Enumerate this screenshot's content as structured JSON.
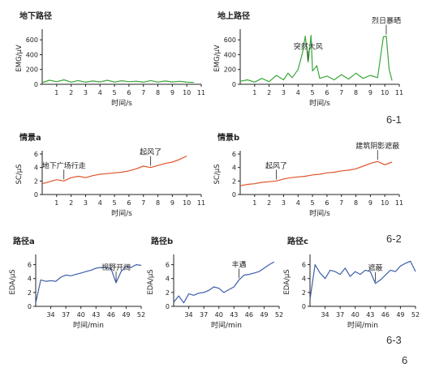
{
  "figure_labels": {
    "row1": "6-1",
    "row2": "6-2",
    "row3": "6-3",
    "figure": "6"
  },
  "colors": {
    "emg": "#3aa53a",
    "sc": "#e0542a",
    "eda": "#3c5fa8",
    "axis": "#222222"
  },
  "chart_data": [
    {
      "type": "line",
      "title": "地下路径",
      "xlabel": "时间/s",
      "ylabel": "EMG/μV",
      "xlim": [
        0,
        11
      ],
      "ylim": [
        0,
        700
      ],
      "x_ticks": [
        1,
        2,
        3,
        4,
        5,
        6,
        7,
        8,
        9,
        10,
        11
      ],
      "y_ticks": [
        0,
        200,
        400,
        600
      ],
      "x": [
        0,
        0.5,
        1,
        1.5,
        2,
        2.5,
        3,
        3.5,
        4,
        4.5,
        5,
        5.5,
        6,
        6.5,
        7,
        7.5,
        8,
        8.5,
        9,
        9.5,
        10,
        10.5
      ],
      "values": [
        22,
        55,
        35,
        60,
        30,
        50,
        28,
        45,
        32,
        55,
        30,
        48,
        35,
        42,
        28,
        50,
        30,
        45,
        32,
        40,
        28,
        25
      ],
      "annotations": []
    },
    {
      "type": "line",
      "title": "地上路径",
      "xlabel": "时间/s",
      "ylabel": "EMG/μV",
      "xlim": [
        0,
        11
      ],
      "ylim": [
        0,
        700
      ],
      "x_ticks": [
        1,
        2,
        3,
        4,
        5,
        6,
        7,
        8,
        9,
        10,
        11
      ],
      "y_ticks": [
        0,
        200,
        400,
        600
      ],
      "x": [
        0,
        0.5,
        1,
        1.5,
        2,
        2.5,
        3,
        3.3,
        3.6,
        4,
        4.3,
        4.5,
        4.7,
        4.9,
        5,
        5.3,
        5.5,
        6,
        6.5,
        7,
        7.5,
        8,
        8.5,
        9,
        9.5,
        9.9,
        10.1,
        10.3,
        10.5
      ],
      "values": [
        40,
        60,
        30,
        80,
        35,
        120,
        60,
        150,
        90,
        200,
        420,
        650,
        300,
        660,
        180,
        250,
        80,
        110,
        60,
        130,
        70,
        150,
        80,
        120,
        90,
        640,
        650,
        200,
        50
      ],
      "annotations": [
        {
          "text": "突然大风",
          "x": 4.7
        },
        {
          "text": "烈日暴晒",
          "x": 10.1
        }
      ]
    },
    {
      "type": "line",
      "title": "情景a",
      "xlabel": "时间/s",
      "ylabel": "SC/μS",
      "xlim": [
        0,
        11
      ],
      "ylim": [
        0,
        6
      ],
      "x_ticks": [
        1,
        2,
        3,
        4,
        5,
        6,
        7,
        8,
        9,
        10,
        11
      ],
      "y_ticks": [
        0,
        2,
        4,
        6
      ],
      "x": [
        0,
        0.5,
        1,
        1.5,
        2,
        2.5,
        3,
        3.5,
        4,
        4.5,
        5,
        5.5,
        6,
        6.5,
        7,
        7.5,
        8,
        8.5,
        9,
        9.5,
        10
      ],
      "values": [
        1.6,
        1.9,
        2.2,
        2.0,
        2.5,
        2.7,
        2.5,
        2.8,
        3.0,
        3.1,
        3.2,
        3.3,
        3.5,
        3.8,
        4.2,
        4.0,
        4.3,
        4.6,
        4.8,
        5.2,
        5.7
      ],
      "annotations": [
        {
          "text": "地下广场行走",
          "x": 1.3
        },
        {
          "text": "起风了",
          "x": 7.4
        }
      ]
    },
    {
      "type": "line",
      "title": "情景b",
      "xlabel": "时间/s",
      "ylabel": "SC/μS",
      "xlim": [
        0,
        11
      ],
      "ylim": [
        0,
        6
      ],
      "x_ticks": [
        1,
        2,
        3,
        4,
        5,
        6,
        7,
        8,
        9,
        10,
        11
      ],
      "y_ticks": [
        0,
        2,
        4,
        6
      ],
      "x": [
        0,
        0.5,
        1,
        1.5,
        2,
        2.5,
        3,
        3.5,
        4,
        4.5,
        5,
        5.5,
        6,
        6.5,
        7,
        7.5,
        8,
        8.5,
        9,
        9.5,
        10,
        10.5
      ],
      "values": [
        1.3,
        1.5,
        1.6,
        1.8,
        1.9,
        2.0,
        2.3,
        2.5,
        2.6,
        2.7,
        2.9,
        3.0,
        3.2,
        3.3,
        3.5,
        3.6,
        3.8,
        4.2,
        4.6,
        4.9,
        4.4,
        4.8
      ],
      "annotations": [
        {
          "text": "起风了",
          "x": 2.6
        },
        {
          "text": "建筑阴影遮蔽",
          "x": 9.5
        }
      ]
    },
    {
      "type": "line",
      "title": "路径a",
      "xlabel": "时间/min",
      "ylabel": "EDA/μS",
      "xlim": [
        31,
        52
      ],
      "ylim": [
        0,
        7
      ],
      "x_ticks": [
        34,
        37,
        40,
        43,
        46,
        49,
        52
      ],
      "y_ticks": [
        0,
        2,
        4,
        6
      ],
      "x": [
        31,
        32,
        33,
        34,
        35,
        36,
        37,
        38,
        39,
        40,
        41,
        42,
        43,
        44,
        45,
        46,
        47,
        48,
        49,
        50,
        51,
        52
      ],
      "values": [
        0.5,
        3.8,
        3.6,
        3.7,
        3.6,
        4.2,
        4.5,
        4.4,
        4.6,
        4.8,
        5.0,
        5.2,
        5.5,
        5.6,
        5.6,
        5.4,
        3.4,
        5.0,
        5.8,
        5.6,
        6.0,
        5.9
      ],
      "annotations": [
        {
          "text": "视野开阔",
          "x": 47
        }
      ]
    },
    {
      "type": "line",
      "title": "路径b",
      "xlabel": "时间/min",
      "ylabel": "EDA/μS",
      "xlim": [
        31,
        52
      ],
      "ylim": [
        0,
        7
      ],
      "x_ticks": [
        34,
        37,
        40,
        43,
        46,
        49,
        52
      ],
      "y_ticks": [
        0,
        2,
        4,
        6
      ],
      "x": [
        31,
        32,
        33,
        34,
        35,
        36,
        37,
        38,
        39,
        40,
        41,
        42,
        43,
        44,
        45,
        46,
        47,
        48,
        49,
        50,
        51
      ],
      "values": [
        0.6,
        1.5,
        0.5,
        1.8,
        1.6,
        1.9,
        2.0,
        2.3,
        2.8,
        2.6,
        2.0,
        2.4,
        2.8,
        3.8,
        4.5,
        4.6,
        4.8,
        5.0,
        5.5,
        6.0,
        6.4
      ],
      "annotations": [
        {
          "text": "丰遇",
          "x": 44
        }
      ]
    },
    {
      "type": "line",
      "title": "路径c",
      "xlabel": "时间/min",
      "ylabel": "EDA/μS",
      "xlim": [
        31,
        52
      ],
      "ylim": [
        0,
        7
      ],
      "x_ticks": [
        34,
        37,
        40,
        43,
        46,
        49,
        52
      ],
      "y_ticks": [
        0,
        2,
        4,
        6
      ],
      "x": [
        31,
        32,
        33,
        34,
        35,
        36,
        37,
        38,
        39,
        40,
        41,
        42,
        43,
        44,
        45,
        46,
        47,
        48,
        49,
        50,
        51,
        52
      ],
      "values": [
        1.0,
        6.0,
        4.8,
        4.0,
        5.2,
        5.0,
        4.6,
        5.5,
        4.3,
        5.0,
        4.6,
        5.2,
        5.0,
        3.3,
        3.8,
        4.5,
        5.2,
        5.0,
        5.8,
        6.2,
        6.5,
        5.0
      ],
      "annotations": [
        {
          "text": "遮蔽",
          "x": 44
        }
      ]
    }
  ]
}
